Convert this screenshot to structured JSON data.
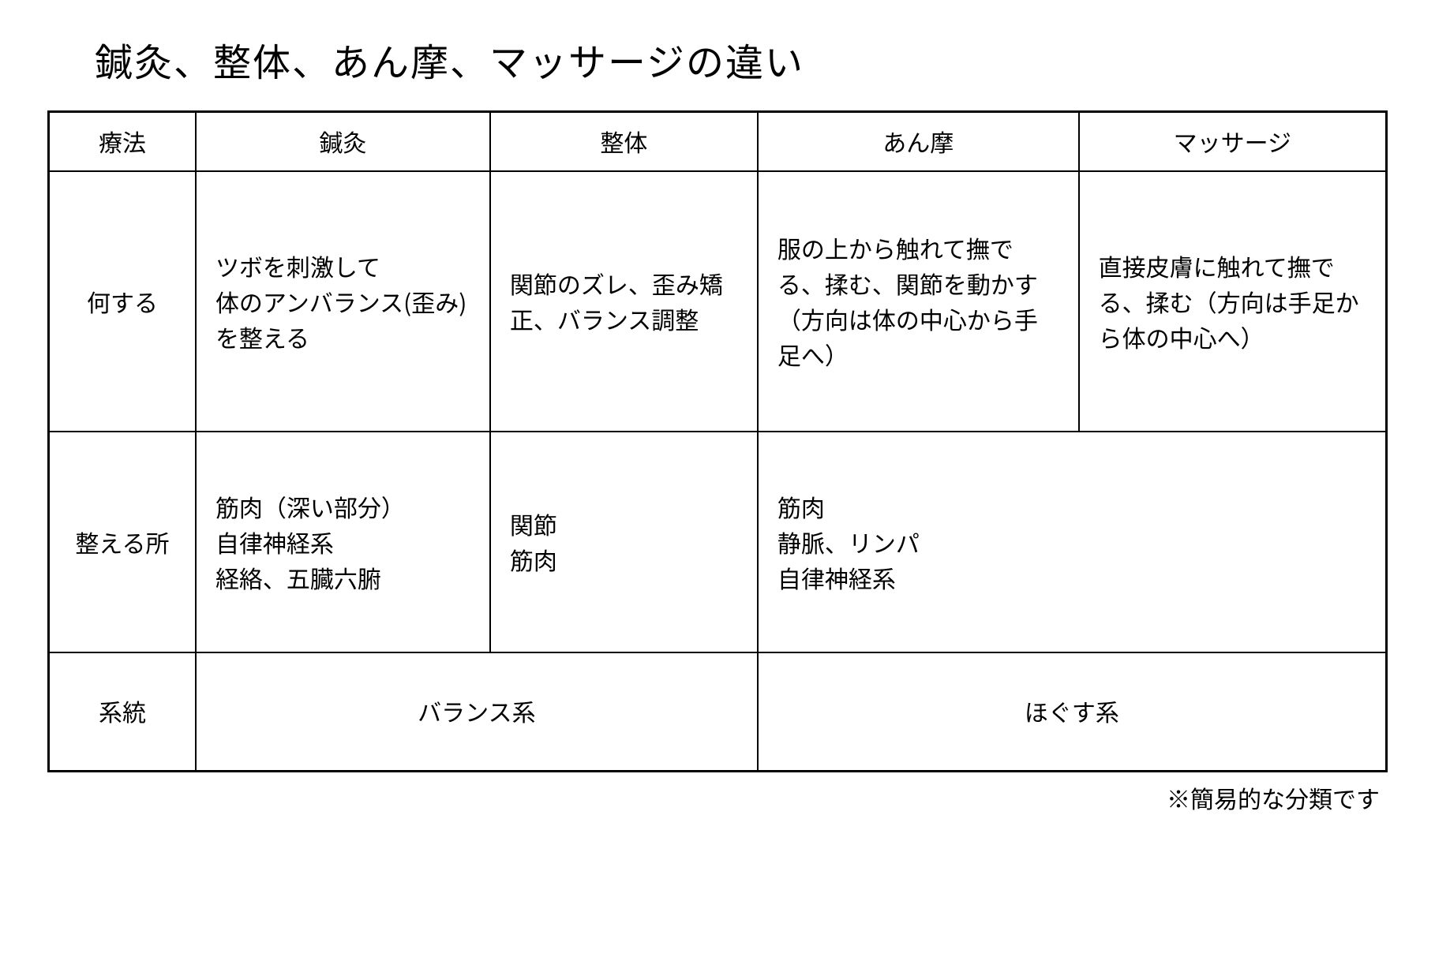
{
  "title": "鍼灸、整体、あん摩、マッサージの違い",
  "table": {
    "border_color": "#000000",
    "background_color": "#ffffff",
    "text_color": "#000000",
    "title_fontsize": 48,
    "cell_fontsize": 30,
    "header": {
      "label": "療法",
      "columns": [
        "鍼灸",
        "整体",
        "あん摩",
        "マッサージ"
      ]
    },
    "rows": {
      "what": {
        "label": "何する",
        "cells": [
          "ツボを刺激して\n体のアンバランス(歪み)を整える",
          "関節のズレ、歪み矯正、バランス調整",
          "服の上から触れて撫でる、揉む、関節を動かす（方向は体の中心から手足へ）",
          "直接皮膚に触れて撫でる、揉む（方向は手足から体の中心へ）"
        ]
      },
      "where": {
        "label": "整える所",
        "cells": [
          "筋肉（深い部分）\n自律神経系\n経絡、五臓六腑",
          "関節\n筋肉",
          "筋肉\n静脈、リンパ\n自律神経系"
        ],
        "merged_last_colspan": 2
      },
      "system": {
        "label": "系統",
        "cells": [
          "バランス系",
          "ほぐす系"
        ],
        "colspan_each": 2
      }
    }
  },
  "footnote": "※簡易的な分類です"
}
